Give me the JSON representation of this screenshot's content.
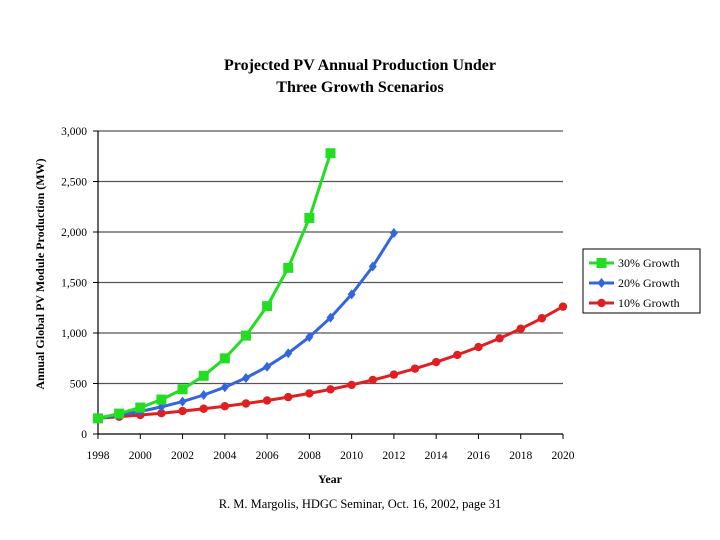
{
  "chart_data": {
    "type": "line",
    "title_lines": [
      "Projected PV Annual Production Under",
      "Three Growth Scenarios"
    ],
    "xlabel": "Year",
    "ylabel": "Annual Global PV Module Production (MW)",
    "xlim": [
      1998,
      2020
    ],
    "ylim": [
      0,
      3000
    ],
    "x_ticks": [
      1998,
      2000,
      2002,
      2004,
      2006,
      2008,
      2010,
      2012,
      2014,
      2016,
      2018,
      2020
    ],
    "y_ticks": [
      0,
      500,
      1000,
      1500,
      2000,
      2500,
      3000
    ],
    "y_tick_labels": [
      "0",
      "500",
      "1,000",
      "1,500",
      "2,000",
      "2,500",
      "3,000"
    ],
    "grid": "horizontal",
    "legend_position": "right",
    "series": [
      {
        "name": "30% Growth",
        "color": "#22dd22",
        "marker": "square",
        "x": [
          1998,
          1999,
          2000,
          2001,
          2002,
          2003,
          2004,
          2005,
          2006,
          2007,
          2008,
          2009
        ],
        "values": [
          155,
          202,
          262,
          341,
          443,
          576,
          749,
          974,
          1266,
          1645,
          2139,
          2780
        ]
      },
      {
        "name": "20% Growth",
        "color": "#3366dd",
        "marker": "diamond",
        "x": [
          1998,
          1999,
          2000,
          2001,
          2002,
          2003,
          2004,
          2005,
          2006,
          2007,
          2008,
          2009,
          2010,
          2011,
          2012
        ],
        "values": [
          155,
          186,
          223,
          268,
          321,
          386,
          463,
          555,
          666,
          800,
          960,
          1152,
          1382,
          1658,
          1990
        ]
      },
      {
        "name": "10% Growth",
        "color": "#e02020",
        "marker": "circle",
        "x": [
          1998,
          1999,
          2000,
          2001,
          2002,
          2003,
          2004,
          2005,
          2006,
          2007,
          2008,
          2009,
          2010,
          2011,
          2012,
          2013,
          2014,
          2015,
          2016,
          2017,
          2018,
          2019,
          2020
        ],
        "values": [
          155,
          171,
          188,
          206,
          227,
          250,
          275,
          302,
          332,
          365,
          402,
          442,
          486,
          535,
          588,
          647,
          712,
          783,
          861,
          947,
          1042,
          1146,
          1261
        ]
      }
    ]
  },
  "caption": "R. M. Margolis, HDGC Seminar, Oct. 16, 2002, page 31"
}
